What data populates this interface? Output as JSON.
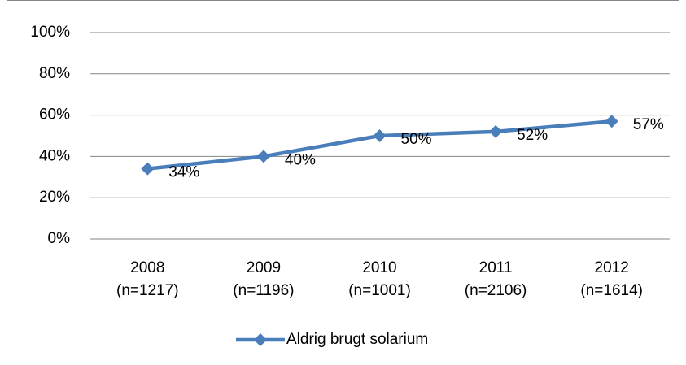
{
  "chart_data": {
    "type": "line",
    "categories": [
      [
        "2008",
        "(n=1217)"
      ],
      [
        "2009",
        "(n=1196)"
      ],
      [
        "2010",
        "(n=1001)"
      ],
      [
        "2011",
        "(n=2106)"
      ],
      [
        "2012",
        "(n=1614)"
      ]
    ],
    "series": [
      {
        "name": "Aldrig brugt solarium",
        "color": "#4a7ebb",
        "values": [
          34,
          40,
          50,
          52,
          57
        ],
        "value_labels": [
          "34%",
          "40%",
          "50%",
          "52%",
          "57%"
        ]
      }
    ],
    "ylim": [
      0,
      100
    ],
    "yticks": [
      {
        "value": 0,
        "label": "0%"
      },
      {
        "value": 20,
        "label": "20%"
      },
      {
        "value": 40,
        "label": "40%"
      },
      {
        "value": 60,
        "label": "60%"
      },
      {
        "value": 80,
        "label": "80%"
      },
      {
        "value": 100,
        "label": "100%"
      }
    ],
    "grid": true,
    "legend": "bottom"
  }
}
